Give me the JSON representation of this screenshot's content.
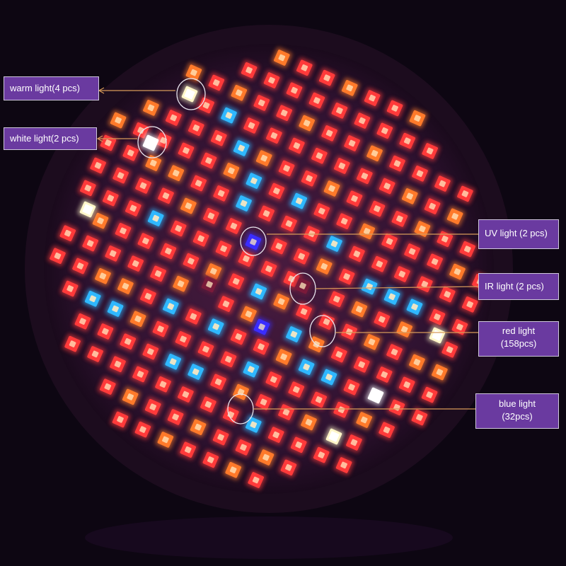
{
  "colors": {
    "background": "#0d0612",
    "panel": "#3a1a38",
    "red_led": "#ff3a3a",
    "orange_led": "#ff7a2a",
    "blue_led": "#2fb8ff",
    "warm_led": "#fff6c8",
    "white_led": "#ffffff",
    "uv_led": "#3a2dff",
    "ir_led": "#7a1a3a",
    "label_bg": "#6a3aa0",
    "callout_line": "#d89a5a"
  },
  "labels": {
    "warm": "warm light(4 pcs)",
    "white": "white light(2 pcs)",
    "uv": "UV light (2 pcs)",
    "ir": "IR light (2 pcs)",
    "red_line1": "red  light",
    "red_line2": "(158pcs)",
    "blue_line1": "blue  light",
    "blue_line2": "(32pcs)"
  }
}
